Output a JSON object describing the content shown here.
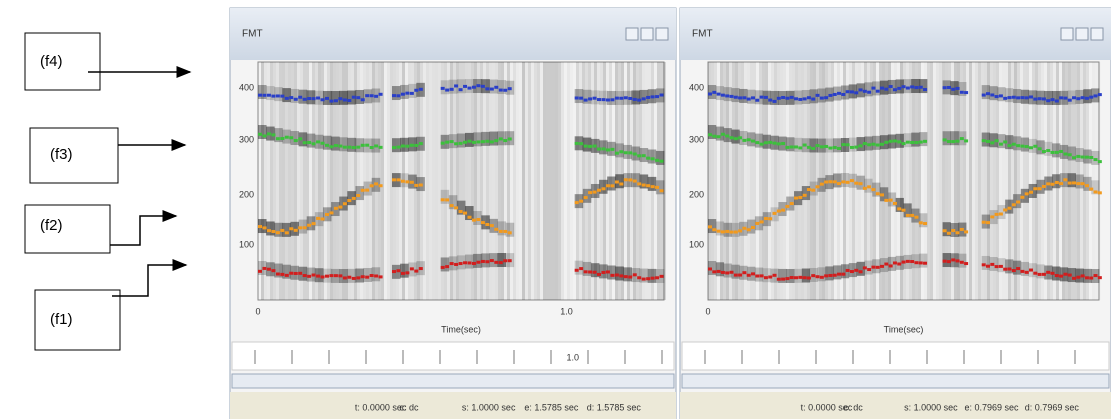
{
  "formant_labels": [
    "(f4)",
    "(f3)",
    "(f2)",
    "(f1)"
  ],
  "windows": [
    {
      "title": "FMT",
      "y_ticks": [
        "400",
        "300",
        "200",
        "100"
      ],
      "x_ticks": [
        "0",
        "1.0"
      ],
      "x_axis_label": "Time(sec)",
      "ruler_label": "1.0",
      "status": [
        "t: 0.0000 sec",
        "c: dc",
        "s: 1.0000 sec",
        "e: 1.5785 sec",
        "d: 1.5785 sec"
      ]
    },
    {
      "title": "FMT",
      "y_ticks": [
        "400",
        "300",
        "200",
        "100"
      ],
      "x_ticks": [
        "0"
      ],
      "x_axis_label": "Time(sec)",
      "status": [
        "t: 0.0000 sec",
        "c: dc",
        "s: 1.0000 sec",
        "e: 0.7969 sec",
        "d: 0.7969 sec"
      ]
    }
  ]
}
